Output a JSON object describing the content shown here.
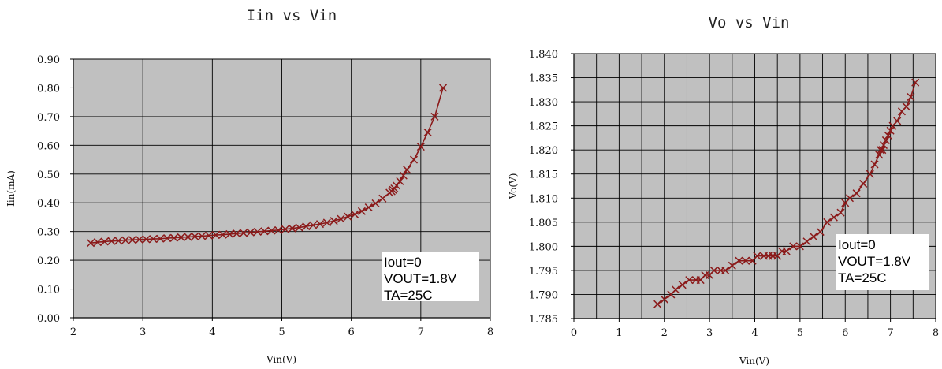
{
  "chart_data": [
    {
      "type": "line",
      "title": "Iin vs Vin",
      "xlabel": "Vin(V)",
      "ylabel": "Iin(mA)",
      "xlim": [
        2,
        8
      ],
      "ylim": [
        0,
        0.9
      ],
      "x_ticks": [
        "2",
        "3",
        "4",
        "5",
        "6",
        "7",
        "8"
      ],
      "y_ticks": [
        "0.00",
        "0.10",
        "0.20",
        "0.30",
        "0.40",
        "0.50",
        "0.60",
        "0.70",
        "0.80",
        "0.90"
      ],
      "grid": true,
      "annotation": [
        "Iout=0",
        "VOUT=1.8V",
        "TA=25C"
      ],
      "line_color": "#8b1a1a",
      "plot_bg": "#c0c0c0",
      "series": [
        {
          "marker": "x",
          "x": [
            2.25,
            2.35,
            2.45,
            2.55,
            2.65,
            2.75,
            2.85,
            2.95,
            3.05,
            3.15,
            3.25,
            3.35,
            3.45,
            3.55,
            3.65,
            3.75,
            3.85,
            3.95,
            4.05,
            4.15,
            4.25,
            4.35,
            4.45,
            4.55,
            4.65,
            4.75,
            4.85,
            4.95,
            5.05,
            5.15,
            5.25,
            5.35,
            5.45,
            5.55,
            5.65,
            5.75,
            5.85,
            5.95,
            6.05,
            6.15,
            6.25,
            6.35,
            6.45,
            6.55,
            6.58,
            6.6,
            6.62,
            6.65,
            6.7,
            6.75,
            6.8,
            6.9,
            7.0,
            7.1,
            7.2,
            7.32
          ],
          "y": [
            0.26,
            0.263,
            0.265,
            0.267,
            0.268,
            0.27,
            0.271,
            0.272,
            0.273,
            0.274,
            0.275,
            0.277,
            0.278,
            0.28,
            0.281,
            0.283,
            0.284,
            0.286,
            0.288,
            0.289,
            0.291,
            0.293,
            0.295,
            0.297,
            0.299,
            0.301,
            0.303,
            0.305,
            0.308,
            0.311,
            0.314,
            0.318,
            0.322,
            0.326,
            0.331,
            0.337,
            0.344,
            0.352,
            0.36,
            0.371,
            0.384,
            0.398,
            0.415,
            0.435,
            0.44,
            0.445,
            0.45,
            0.46,
            0.475,
            0.495,
            0.515,
            0.55,
            0.595,
            0.645,
            0.7,
            0.8
          ]
        }
      ]
    },
    {
      "type": "line",
      "title": "Vo vs Vin",
      "xlabel": "Vin(V)",
      "ylabel": "Vo(V)",
      "xlim": [
        0,
        8
      ],
      "ylim": [
        1.785,
        1.84
      ],
      "x_ticks": [
        "0",
        "1",
        "2",
        "3",
        "4",
        "5",
        "6",
        "7",
        "8"
      ],
      "y_ticks": [
        "1.785",
        "1.790",
        "1.795",
        "1.800",
        "1.805",
        "1.810",
        "1.815",
        "1.820",
        "1.825",
        "1.830",
        "1.835",
        "1.840"
      ],
      "grid": true,
      "annotation": [
        "Iout=0",
        "VOUT=1.8V",
        "TA=25C"
      ],
      "line_color": "#8b1a1a",
      "plot_bg": "#c0c0c0",
      "series": [
        {
          "marker": "x",
          "x": [
            1.85,
            2.0,
            2.15,
            2.25,
            2.4,
            2.55,
            2.7,
            2.8,
            2.9,
            3.0,
            3.1,
            3.25,
            3.35,
            3.5,
            3.65,
            3.8,
            3.95,
            4.05,
            4.2,
            4.3,
            4.4,
            4.5,
            4.6,
            4.7,
            4.85,
            5.0,
            5.15,
            5.3,
            5.45,
            5.6,
            5.75,
            5.9,
            6.0,
            6.1,
            6.25,
            6.4,
            6.55,
            6.65,
            6.75,
            6.78,
            6.82,
            6.85,
            6.9,
            6.95,
            7.0,
            7.05,
            7.15,
            7.25,
            7.35,
            7.45,
            7.55
          ],
          "y": [
            1.788,
            1.789,
            1.79,
            1.791,
            1.792,
            1.793,
            1.793,
            1.793,
            1.794,
            1.794,
            1.795,
            1.795,
            1.795,
            1.796,
            1.797,
            1.797,
            1.797,
            1.798,
            1.798,
            1.798,
            1.798,
            1.798,
            1.799,
            1.799,
            1.8,
            1.8,
            1.801,
            1.802,
            1.803,
            1.805,
            1.806,
            1.807,
            1.809,
            1.81,
            1.811,
            1.813,
            1.815,
            1.817,
            1.819,
            1.82,
            1.82,
            1.821,
            1.822,
            1.823,
            1.824,
            1.825,
            1.826,
            1.828,
            1.829,
            1.831,
            1.834
          ]
        }
      ]
    }
  ]
}
